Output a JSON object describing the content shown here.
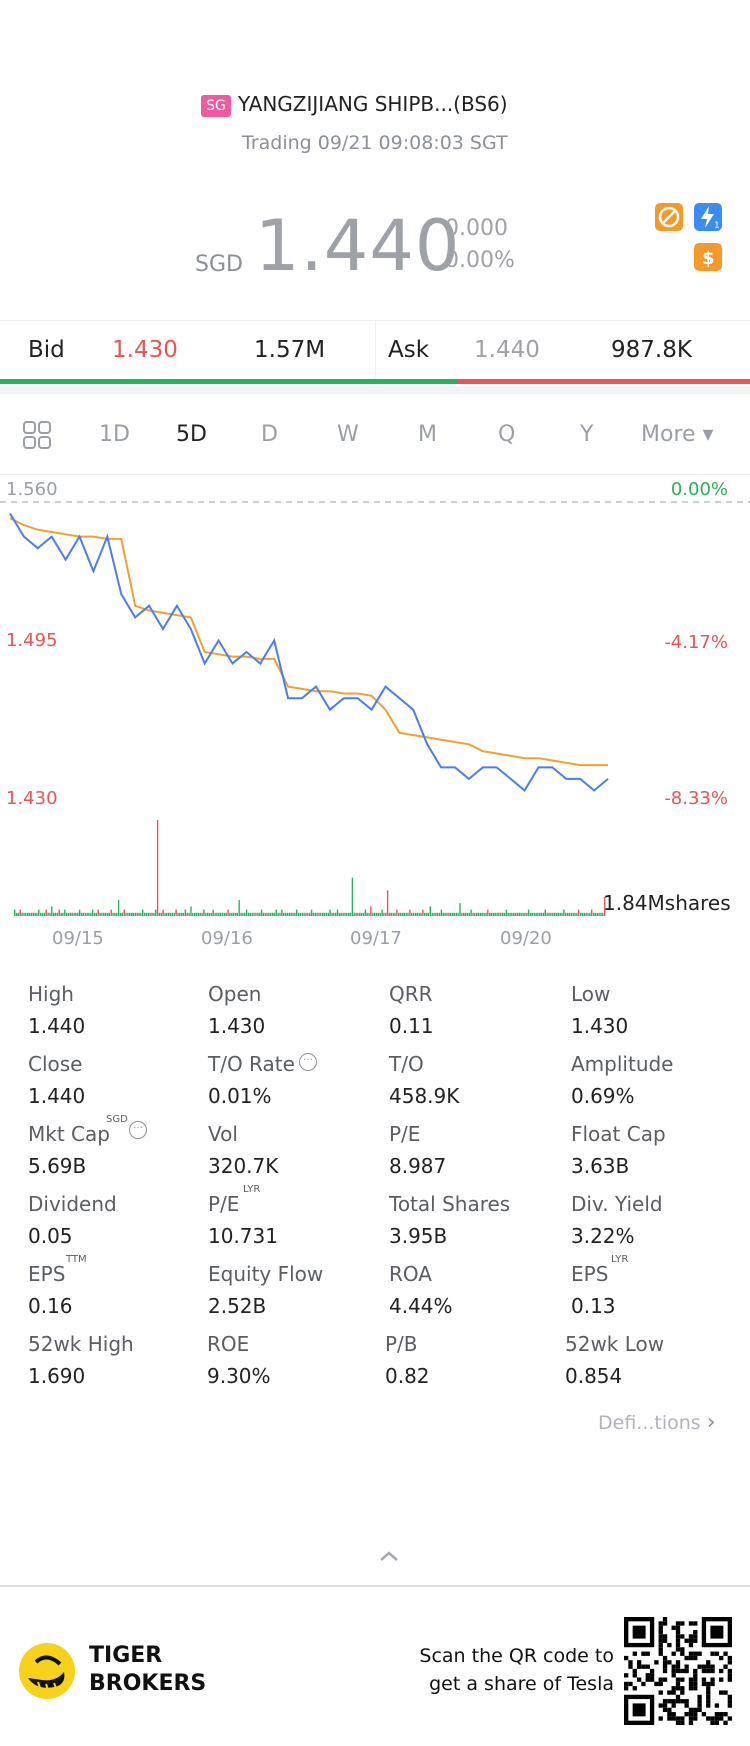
{
  "header": {
    "market_badge": "SG",
    "title": "YANGZIJIANG SHIPB...(BS6)",
    "status": "Trading 09/21 09:08:03 SGT",
    "currency": "SGD",
    "price": "1.440",
    "change": "0.000",
    "change_pct": "0.00%",
    "icons": [
      "no-margin-icon",
      "lightning-1-icon",
      "dollar-icon"
    ]
  },
  "bidask": {
    "bid_label": "Bid",
    "bid_price": "1.430",
    "bid_size": "1.57M",
    "ask_label": "Ask",
    "ask_price": "1.440",
    "ask_size": "987.8K",
    "bid_fraction": 0.61
  },
  "tabs": {
    "items": [
      "1D",
      "5D",
      "D",
      "W",
      "M",
      "Q",
      "Y",
      "More ▾"
    ],
    "active": "5D"
  },
  "chart": {
    "y_left": [
      "1.560",
      "1.495",
      "1.430"
    ],
    "y_right": [
      "0.00%",
      "-4.17%",
      "-8.33%"
    ],
    "volume_label": "1.84Mshares",
    "dates": [
      "09/15",
      "09/16",
      "09/17",
      "09/20"
    ]
  },
  "chart_data": {
    "type": "line",
    "ylim": [
      1.43,
      1.56
    ],
    "series": [
      {
        "values": [
          1.555,
          1.545,
          1.54,
          1.545,
          1.535,
          1.545,
          1.53,
          1.545,
          1.52,
          1.51,
          1.515,
          1.505,
          1.515,
          1.505,
          1.49,
          1.5,
          1.49,
          1.495,
          1.49,
          1.5,
          1.475,
          1.475,
          1.48,
          1.47,
          1.475,
          1.475,
          1.47,
          1.48,
          1.475,
          1.47,
          1.455,
          1.445,
          1.445,
          1.44,
          1.445,
          1.445,
          1.44,
          1.435,
          1.445,
          1.445,
          1.44,
          1.44,
          1.435,
          1.44
        ]
      },
      {
        "values": [
          1.553,
          1.55,
          1.548,
          1.547,
          1.546,
          1.545,
          1.545,
          1.544,
          1.544,
          1.515,
          1.513,
          1.512,
          1.511,
          1.51,
          1.495,
          1.494,
          1.493,
          1.493,
          1.492,
          1.492,
          1.48,
          1.479,
          1.478,
          1.478,
          1.477,
          1.477,
          1.476,
          1.47,
          1.46,
          1.459,
          1.458,
          1.457,
          1.456,
          1.455,
          1.452,
          1.451,
          1.45,
          1.449,
          1.449,
          1.448,
          1.447,
          1.446,
          1.446,
          1.446
        ]
      }
    ],
    "series_colors": [
      "#4a7df0",
      "#f0a030"
    ],
    "volume_bars": [
      2,
      1,
      1,
      2,
      1,
      1,
      1,
      1,
      1,
      1,
      1,
      1,
      1,
      2,
      1,
      1,
      1,
      2,
      1,
      1,
      3,
      1,
      1,
      1,
      2,
      1,
      1,
      2,
      1,
      1,
      1,
      1,
      1,
      1,
      1,
      2,
      1,
      1,
      1,
      1,
      1,
      1,
      2,
      1,
      1,
      2,
      1,
      1,
      1,
      1,
      1,
      1,
      2,
      1,
      1,
      1,
      5,
      1,
      1,
      2,
      1,
      1,
      1,
      1,
      1,
      1,
      1,
      1,
      1,
      2,
      1,
      1,
      1,
      1,
      1,
      1,
      2,
      30,
      1,
      1,
      2,
      1,
      1,
      1,
      1,
      1,
      1,
      2,
      1,
      1,
      1,
      1,
      2,
      1,
      1,
      3,
      1,
      1,
      1,
      1,
      1,
      1,
      2,
      1,
      1,
      1,
      1,
      2,
      1,
      1,
      1,
      1,
      1,
      1,
      1,
      2,
      1,
      1,
      1,
      1,
      1,
      5,
      1,
      1,
      1,
      2,
      1,
      1,
      1,
      1,
      1,
      1,
      1,
      2,
      1,
      1,
      1,
      1,
      1,
      1,
      1,
      2,
      1,
      1,
      2,
      1,
      1,
      1,
      1,
      1,
      1,
      1,
      2,
      1,
      1,
      1,
      1,
      1,
      1,
      1,
      2,
      1,
      1,
      1,
      1,
      1,
      1,
      1,
      1,
      1,
      2,
      1,
      1,
      1,
      2,
      1,
      1,
      1,
      1,
      1,
      1,
      1,
      12,
      1,
      1,
      1,
      1,
      1,
      1,
      2,
      1,
      1,
      3,
      1,
      1,
      1,
      1,
      1,
      2,
      1,
      1,
      8,
      1,
      1,
      1,
      1,
      2,
      1,
      1,
      1,
      1,
      1,
      1,
      2,
      1,
      1,
      1,
      1,
      1,
      1,
      2,
      1,
      1,
      1,
      3,
      1,
      1,
      1,
      1,
      1,
      2,
      1,
      1,
      1,
      1,
      1,
      1,
      1,
      1,
      1,
      4,
      1,
      1,
      1,
      1,
      1,
      2,
      1,
      1,
      1,
      1,
      1,
      1,
      1,
      1,
      2,
      1,
      1,
      1,
      1,
      1,
      1,
      1,
      1,
      1,
      2,
      1,
      1,
      1,
      1,
      1,
      1,
      1,
      1,
      1,
      1,
      1,
      2,
      1,
      1,
      1,
      1,
      1,
      1,
      1,
      1,
      2,
      1,
      1,
      1,
      1,
      1,
      1,
      1,
      1,
      1,
      2,
      1,
      1,
      1,
      1,
      1,
      1,
      1,
      2,
      1,
      1,
      1,
      1,
      1,
      1,
      2,
      1,
      1,
      1,
      1,
      1,
      1,
      6
    ],
    "volume_colors_up": "#28b35a",
    "volume_colors_down": "#e85555"
  },
  "stats": [
    [
      {
        "label": "High",
        "value": "1.440"
      },
      {
        "label": "Open",
        "value": "1.430"
      },
      {
        "label": "QRR",
        "value": "0.11"
      },
      {
        "label": "Low",
        "value": "1.430"
      }
    ],
    [
      {
        "label": "Close",
        "value": "1.440"
      },
      {
        "label": "T/O Rate",
        "value": "0.01%"
      },
      {
        "label": "T/O",
        "value": "458.9K"
      },
      {
        "label": "Amplitude",
        "value": "0.69%"
      }
    ],
    [
      {
        "label": "Mkt Cap",
        "value": "5.69B",
        "sup": "SGD"
      },
      {
        "label": "Vol",
        "value": "320.7K"
      },
      {
        "label": "P/E",
        "value": "8.987"
      },
      {
        "label": "Float Cap",
        "value": "3.63B"
      }
    ],
    [
      {
        "label": "Dividend",
        "value": "0.05"
      },
      {
        "label": "P/E",
        "value": "10.731",
        "sup": "LYR"
      },
      {
        "label": "Total Shares",
        "value": "3.95B"
      },
      {
        "label": "Div. Yield",
        "value": "3.22%"
      }
    ],
    [
      {
        "label": "EPS",
        "value": "0.16",
        "sup": "TTM"
      },
      {
        "label": "Equity Flow",
        "value": "2.52B"
      },
      {
        "label": "ROA",
        "value": "4.44%"
      },
      {
        "label": "EPS",
        "value": "0.13",
        "sup": "LYR"
      }
    ],
    [
      {
        "label": "52wk High",
        "value": "1.690"
      },
      {
        "label": "ROE",
        "value": "9.30%"
      },
      {
        "label": "P/B",
        "value": "0.82"
      },
      {
        "label": "52wk Low",
        "value": "0.854"
      }
    ]
  ],
  "definitions_link": "Defi...tions",
  "footer": {
    "brand_line1": "TIGER",
    "brand_line2": "BROKERS",
    "cta_line1": "Scan the QR code to",
    "cta_line2": "get a share of Tesla"
  },
  "colors": {
    "red": "#e85555",
    "green": "#28b35a",
    "gray": "#9ea1a8",
    "line": "#4a7df0",
    "avg": "#f0a030"
  }
}
